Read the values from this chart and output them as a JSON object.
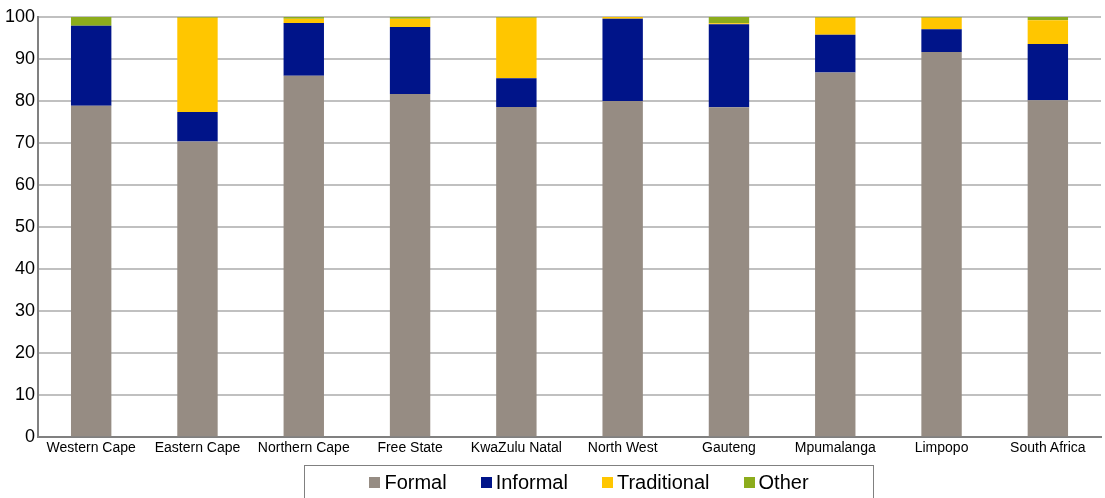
{
  "chart_data": {
    "type": "bar",
    "stacked": true,
    "categories": [
      "Western Cape",
      "Eastern Cape",
      "Northern Cape",
      "Free State",
      "KwaZulu Natal",
      "North West",
      "Gauteng",
      "Mpumalanga",
      "Limpopo",
      "South Africa"
    ],
    "series": [
      {
        "name": "Formal",
        "color": "#968c83",
        "values": [
          78.9,
          70.4,
          86.0,
          81.7,
          78.6,
          80.0,
          78.5,
          86.8,
          91.7,
          80.2
        ]
      },
      {
        "name": "Informal",
        "color": "#001489",
        "values": [
          19.0,
          7.0,
          12.6,
          15.9,
          6.8,
          19.6,
          19.8,
          9.0,
          5.4,
          13.4
        ]
      },
      {
        "name": "Traditional",
        "color": "#ffc600",
        "values": [
          0,
          22.4,
          1.0,
          2.0,
          14.4,
          0.4,
          0.2,
          4.0,
          2.7,
          5.6
        ]
      },
      {
        "name": "Other",
        "color": "#8cac1c",
        "values": [
          2.1,
          0.2,
          0.4,
          0.4,
          0.2,
          0,
          1.5,
          0.2,
          0.2,
          0.8
        ]
      }
    ],
    "ylim": [
      0,
      100
    ],
    "yticks": [
      0,
      10,
      20,
      30,
      40,
      50,
      60,
      70,
      80,
      90,
      100
    ],
    "grid": "y",
    "legend": "bottom"
  }
}
